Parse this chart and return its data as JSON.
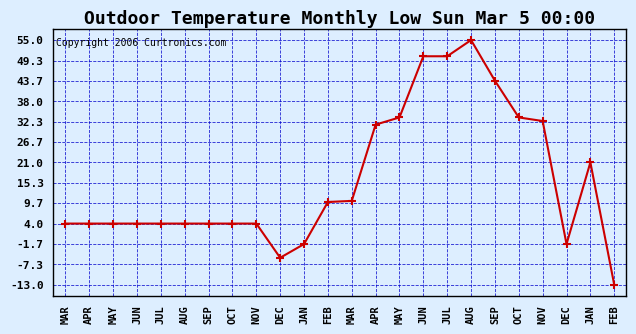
{
  "title": "Outdoor Temperature Monthly Low Sun Mar 5 00:00",
  "copyright": "Copyright 2006 Curtronics.com",
  "x_labels": [
    "MAR",
    "APR",
    "MAY",
    "JUN",
    "JUL",
    "AUG",
    "SEP",
    "OCT",
    "NOV",
    "DEC",
    "JAN",
    "FEB",
    "MAR",
    "APR",
    "MAY",
    "JUN",
    "JUL",
    "AUG",
    "SEP",
    "OCT",
    "NOV",
    "DEC",
    "JAN",
    "FEB"
  ],
  "y_values": [
    4.0,
    4.0,
    4.0,
    4.0,
    4.0,
    4.0,
    4.0,
    4.0,
    4.0,
    -5.5,
    -1.7,
    10.0,
    10.3,
    31.5,
    33.5,
    50.5,
    50.5,
    55.0,
    43.7,
    33.5,
    32.5,
    -1.7,
    21.0,
    -13.0
  ],
  "line_color": "#cc0000",
  "marker_color": "#cc0000",
  "bg_color": "#ddeeff",
  "grid_color": "#0000cc",
  "title_fontsize": 13,
  "ytick_values": [
    55.0,
    49.3,
    43.7,
    38.0,
    32.3,
    26.7,
    21.0,
    15.3,
    9.7,
    4.0,
    -1.7,
    -7.3,
    -13.0
  ],
  "ylim": [
    -16,
    58
  ],
  "border_color": "#000000"
}
